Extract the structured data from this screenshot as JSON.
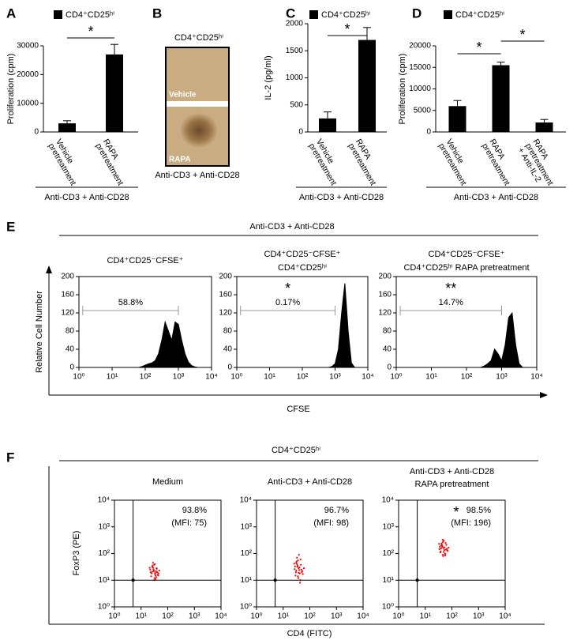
{
  "chart_data": [
    {
      "type": "bar",
      "label": "A",
      "series": [
        {
          "name": "CD4⁺CD25ʰⁱ",
          "color": "#000000",
          "values": [
            3000,
            27000
          ],
          "errors": [
            900,
            3500
          ]
        }
      ],
      "categories": [
        [
          "Vehicle",
          "pretreatment"
        ],
        [
          "RAPA",
          "pretreatment"
        ]
      ],
      "ylabel": "Proliferation (cpm)",
      "ylim": [
        0,
        30000
      ],
      "yticks": [
        0,
        10000,
        20000,
        30000
      ],
      "significance": [
        {
          "from": 0,
          "to": 1,
          "label": "*"
        }
      ],
      "group_label": "Anti-CD3 + Anti-CD28"
    },
    {
      "type": "image",
      "label": "B",
      "title": "CD4⁺CD25ʰⁱ",
      "panels": [
        "Vehicle",
        "RAPA"
      ],
      "caption": "Anti-CD3 + Anti-CD28"
    },
    {
      "type": "bar",
      "label": "C",
      "series": [
        {
          "name": "CD4⁺CD25ʰⁱ",
          "color": "#000000",
          "values": [
            250,
            1700
          ],
          "errors": [
            120,
            230
          ]
        }
      ],
      "categories": [
        [
          "Vehicle",
          "pretreatment"
        ],
        [
          "RAPA",
          "pretreatment"
        ]
      ],
      "ylabel": "IL-2 (pg/ml)",
      "ylim": [
        0,
        2000
      ],
      "yticks": [
        0,
        500,
        1000,
        1500,
        2000
      ],
      "significance": [
        {
          "from": 0,
          "to": 1,
          "label": "*"
        }
      ],
      "group_label": "Anti-CD3 + Anti-CD28"
    },
    {
      "type": "bar",
      "label": "D",
      "series": [
        {
          "name": "CD4⁺CD25ʰⁱ",
          "color": "#000000",
          "values": [
            6000,
            15500,
            2200
          ],
          "errors": [
            1300,
            700,
            700
          ]
        }
      ],
      "categories": [
        [
          "Vehicle",
          "pretreatment"
        ],
        [
          "RAPA",
          "pretreatment"
        ],
        [
          "RAPA",
          "pretreatment",
          "+ Anti-IL-2"
        ]
      ],
      "ylabel": "Proliferation (cpm)",
      "ylim": [
        0,
        20000
      ],
      "yticks": [
        0,
        5000,
        10000,
        15000,
        20000
      ],
      "significance": [
        {
          "from": 0,
          "to": 1,
          "label": "*"
        },
        {
          "from": 1,
          "to": 2,
          "label": "*"
        }
      ],
      "group_label": "Anti-CD3 + Anti-CD28"
    },
    {
      "type": "area",
      "label": "E",
      "header": "Anti-CD3 + Anti-CD28",
      "ylabel": "Relative Cell Number",
      "xlabel": "CFSE",
      "log_x": true,
      "xlim": [
        1,
        10000
      ],
      "xticks": [
        {
          "value": 1,
          "label": "10⁰"
        },
        {
          "value": 10,
          "label": "10¹"
        },
        {
          "value": 100,
          "label": "10²"
        },
        {
          "value": 1000,
          "label": "10³"
        },
        {
          "value": 10000,
          "label": "10⁴"
        }
      ],
      "ylim": [
        0,
        200
      ],
      "yticks": [
        0,
        40,
        80,
        120,
        160,
        200
      ],
      "color": "#000000",
      "plots": [
        {
          "title": [
            "CD4⁺CD25⁻CFSE⁺"
          ],
          "gate": {
            "label": "58.8%",
            "from": 1.3,
            "to": 1000
          },
          "x": [
            63,
            79,
            100,
            126,
            158,
            200,
            251,
            316,
            398,
            501,
            631,
            794,
            1000,
            1259,
            1585,
            1995,
            2512,
            3162,
            3981
          ],
          "values": [
            0,
            2,
            5,
            8,
            10,
            15,
            30,
            60,
            100,
            80,
            60,
            100,
            95,
            60,
            30,
            12,
            4,
            1,
            0
          ]
        },
        {
          "title": [
            "CD4⁺CD25⁻CFSE⁺",
            "CD4⁺CD25ʰⁱ"
          ],
          "mark": "*",
          "gate": {
            "label": "0.17%",
            "from": 1.3,
            "to": 1000
          },
          "x": [
            631,
            794,
            1000,
            1259,
            1585,
            1995,
            2512,
            3162,
            3981
          ],
          "values": [
            0,
            2,
            8,
            40,
            120,
            185,
            80,
            10,
            0
          ]
        },
        {
          "title": [
            "CD4⁺CD25⁻CFSE⁺",
            "CD4⁺CD25ʰⁱ RAPA pretreatment"
          ],
          "mark": "**",
          "gate": {
            "label": "14.7%",
            "from": 1.3,
            "to": 1000
          },
          "x": [
            251,
            316,
            398,
            501,
            631,
            794,
            1000,
            1259,
            1585,
            1995,
            2512,
            3162,
            3981
          ],
          "values": [
            0,
            3,
            8,
            15,
            40,
            30,
            15,
            50,
            110,
            120,
            50,
            8,
            0
          ]
        }
      ]
    },
    {
      "type": "scatter",
      "label": "F",
      "header": "CD4⁺CD25ʰⁱ",
      "xlabel": "CD4 (FITC)",
      "ylabel": "FoxP3 (PE)",
      "log_x": true,
      "log_y": true,
      "xlim": [
        1,
        10000
      ],
      "ylim": [
        1,
        10000
      ],
      "xticks": [
        {
          "value": 1,
          "label": "10⁰"
        },
        {
          "value": 10,
          "label": "10¹"
        },
        {
          "value": 100,
          "label": "10²"
        },
        {
          "value": 1000,
          "label": "10³"
        },
        {
          "value": 10000,
          "label": "10⁴"
        }
      ],
      "yticks": [
        {
          "value": 1,
          "label": "10⁰"
        },
        {
          "value": 10,
          "label": "10¹"
        },
        {
          "value": 100,
          "label": "10²"
        },
        {
          "value": 1000,
          "label": "10³"
        },
        {
          "value": 10000,
          "label": "10⁴"
        }
      ],
      "color": "#ff0000",
      "quadrant": [
        5,
        10
      ],
      "plots": [
        {
          "title": [
            "Medium"
          ],
          "annotation": [
            "93.8%",
            "(MFI: 75)"
          ],
          "x": [
            25,
            30,
            35,
            28,
            40,
            22,
            32,
            38,
            27,
            45,
            33,
            24,
            36,
            29,
            31,
            42,
            26,
            34,
            30,
            37,
            23,
            39,
            28,
            33,
            48,
            21,
            35,
            31,
            27,
            44
          ],
          "y": [
            18,
            22,
            15,
            30,
            20,
            25,
            12,
            28,
            35,
            18,
            40,
            14,
            22,
            26,
            10,
            16,
            32,
            19,
            24,
            13,
            20,
            27,
            45,
            17,
            23,
            29,
            11,
            38,
            21,
            15
          ]
        },
        {
          "title": [
            "Anti-CD3 + Anti-CD28"
          ],
          "annotation": [
            "96.7%",
            "(MFI: 98)"
          ],
          "x": [
            30,
            38,
            42,
            33,
            48,
            28,
            36,
            45,
            31,
            52,
            39,
            29,
            41,
            35,
            37,
            50,
            32,
            40,
            34,
            44,
            27,
            46,
            33,
            38,
            60,
            26,
            43,
            36,
            31,
            55
          ],
          "y": [
            20,
            28,
            18,
            40,
            25,
            33,
            14,
            60,
            45,
            22,
            90,
            15,
            30,
            35,
            12,
            20,
            50,
            24,
            32,
            10,
            26,
            38,
            70,
            19,
            28,
            42,
            8,
            55,
            23,
            17
          ]
        },
        {
          "title": [
            "Anti-CD3 + Anti-CD28",
            "RAPA pretreatment"
          ],
          "mark": "*",
          "annotation": [
            "98.5%",
            "(MFI: 196)"
          ],
          "x": [
            38,
            48,
            55,
            42,
            60,
            35,
            46,
            58,
            40,
            68,
            50,
            37,
            53,
            44,
            47,
            65,
            41,
            52,
            43,
            57,
            34,
            62,
            45,
            49,
            75,
            33,
            56,
            46,
            39,
            70
          ],
          "y": [
            120,
            160,
            100,
            220,
            140,
            180,
            90,
            250,
            200,
            130,
            300,
            110,
            170,
            190,
            80,
            150,
            240,
            135,
            175,
            95,
            145,
            210,
            330,
            115,
            165,
            230,
            85,
            270,
            155,
            125
          ]
        }
      ]
    }
  ]
}
